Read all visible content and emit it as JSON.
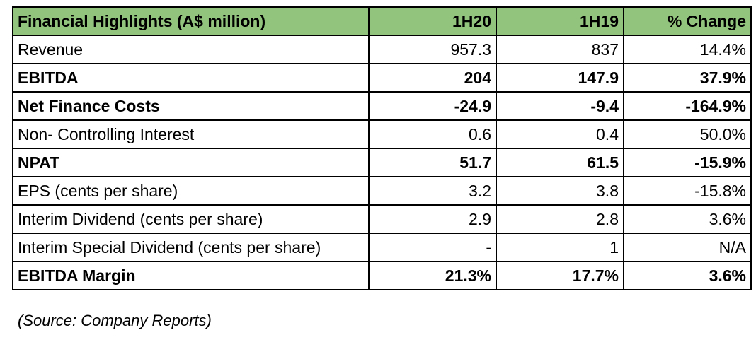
{
  "table": {
    "headers": [
      "Financial Highlights (A$ million)",
      "1H20",
      "1H19",
      "% Change"
    ],
    "rows": [
      {
        "label": "Revenue",
        "h20": "957.3",
        "h19": "837",
        "change": "14.4%",
        "bold": false
      },
      {
        "label": "EBITDA",
        "h20": "204",
        "h19": "147.9",
        "change": "37.9%",
        "bold": true
      },
      {
        "label": "Net Finance Costs",
        "h20": "-24.9",
        "h19": "-9.4",
        "change": "-164.9%",
        "bold": true
      },
      {
        "label": "Non- Controlling Interest",
        "h20": "0.6",
        "h19": "0.4",
        "change": "50.0%",
        "bold": false
      },
      {
        "label": "NPAT",
        "h20": "51.7",
        "h19": "61.5",
        "change": "-15.9%",
        "bold": true
      },
      {
        "label": "EPS (cents per share)",
        "h20": "3.2",
        "h19": "3.8",
        "change": "-15.8%",
        "bold": false
      },
      {
        "label": "Interim Dividend (cents per share)",
        "h20": "2.9",
        "h19": "2.8",
        "change": "3.6%",
        "bold": false
      },
      {
        "label": "Interim Special Dividend (cents per share)",
        "h20": "-",
        "h19": "1",
        "change": "N/A",
        "bold": false
      },
      {
        "label": "EBITDA Margin",
        "h20": "21.3%",
        "h19": "17.7%",
        "change": "3.6%",
        "bold": true
      }
    ]
  },
  "source_note": "(Source: Company Reports)",
  "colors": {
    "header_background": "#93c47d",
    "border": "#000000"
  }
}
